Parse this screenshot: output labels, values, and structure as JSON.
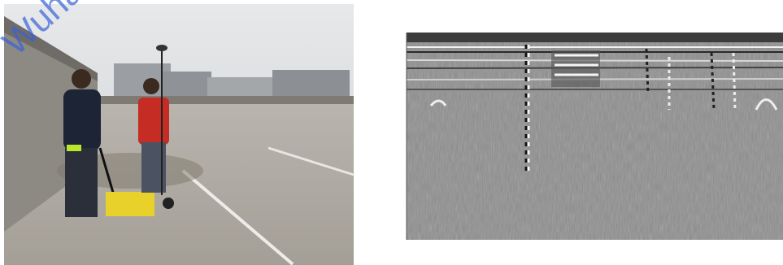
{
  "watermark": "Wuha"
}
